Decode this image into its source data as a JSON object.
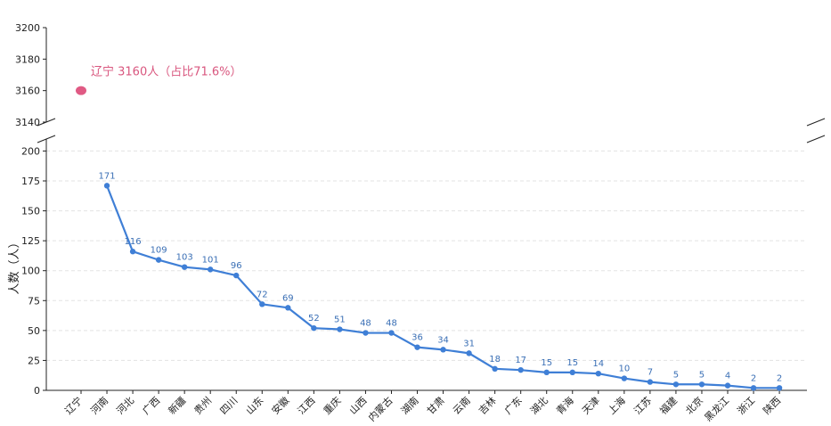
{
  "chart_data": {
    "type": "line",
    "ylabel": "人数（人）",
    "categories": [
      "辽宁",
      "河南",
      "河北",
      "广西",
      "新疆",
      "贵州",
      "四川",
      "山东",
      "安徽",
      "江西",
      "重庆",
      "山西",
      "内蒙古",
      "湖南",
      "甘肃",
      "云南",
      "吉林",
      "广东",
      "湖北",
      "青海",
      "天津",
      "上海",
      "江苏",
      "福建",
      "北京",
      "黑龙江",
      "浙江",
      "陕西"
    ],
    "series": [
      {
        "values": [
          null,
          171,
          116,
          109,
          103,
          101,
          96,
          72,
          69,
          52,
          51,
          48,
          48,
          36,
          34,
          31,
          18,
          17,
          15,
          15,
          14,
          10,
          7,
          5,
          5,
          4,
          2,
          2
        ],
        "color": "#3f7fd6"
      }
    ],
    "outlier": {
      "category": "辽宁",
      "value": 3160,
      "color": "#e05a84",
      "annotation": "辽宁 3160人（占比71.6%）"
    },
    "broken_axis": true,
    "upper_ylim": [
      3140,
      3200
    ],
    "upper_yticks": [
      3140,
      3160,
      3180,
      3200
    ],
    "lower_ylim": [
      0,
      210
    ],
    "lower_yticks": [
      0,
      25,
      50,
      75,
      100,
      125,
      150,
      175,
      200
    ],
    "grid": "horizontal-dashed",
    "legend": "none"
  }
}
